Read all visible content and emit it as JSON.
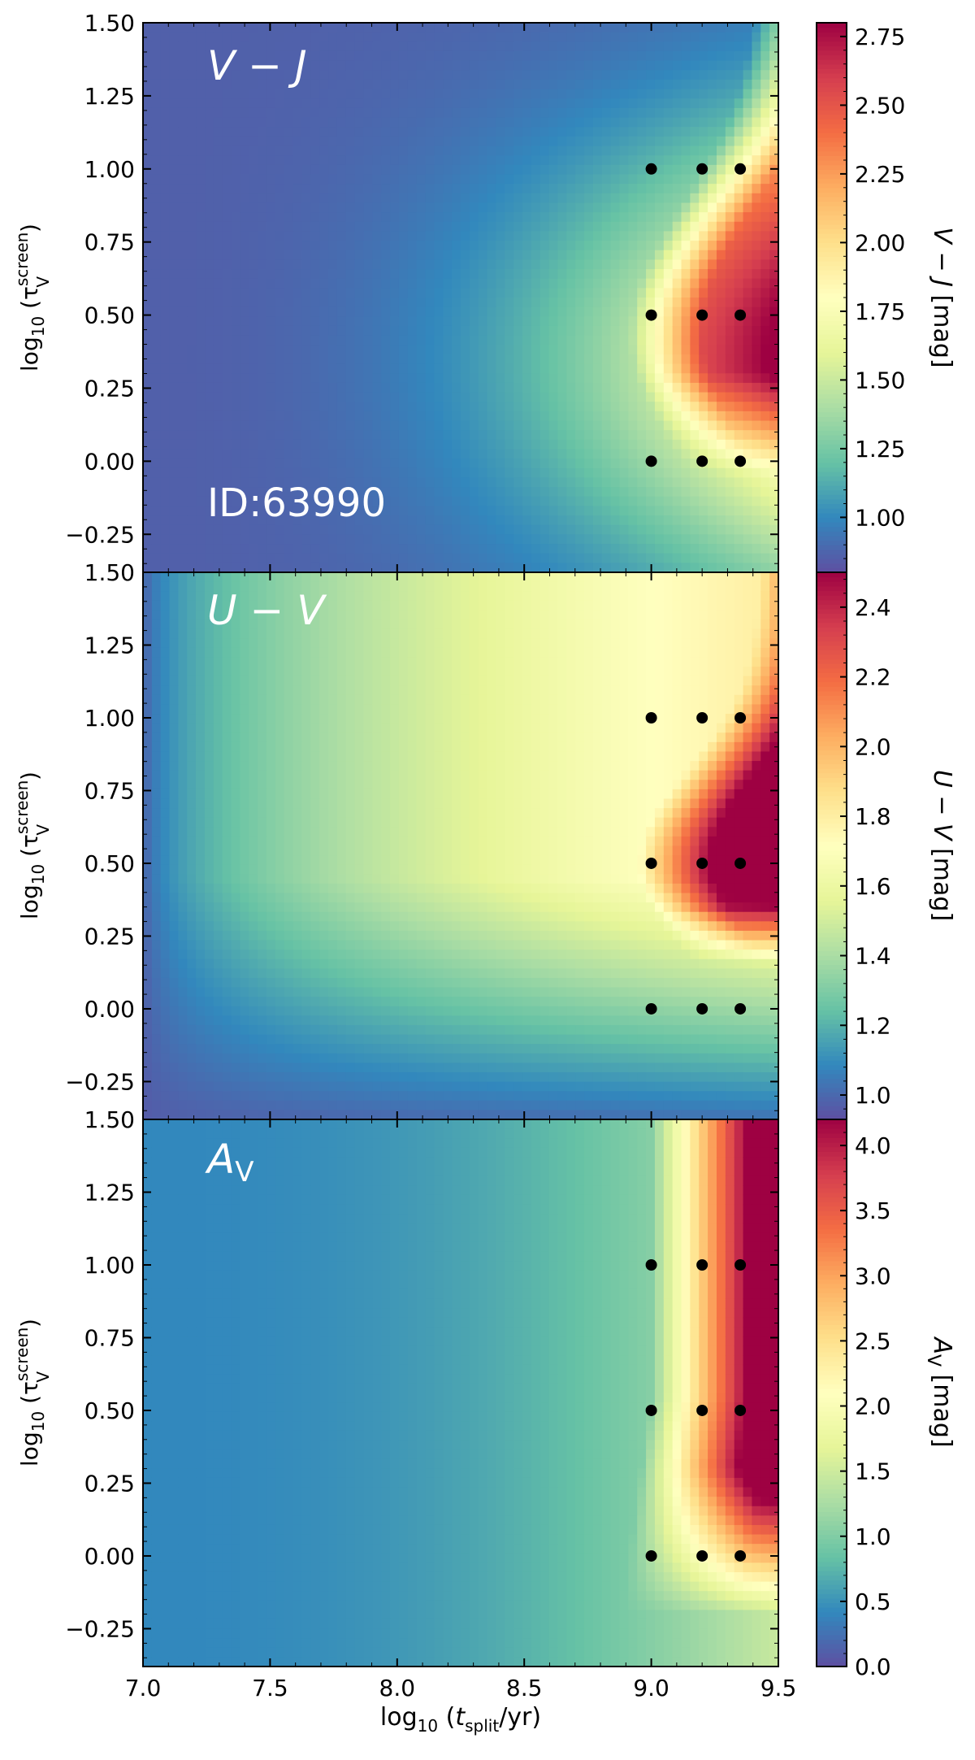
{
  "figure": {
    "x_axis_label": "log₁₀ (t_split/yr)",
    "colormap": "Spectral_r",
    "marker_color": "#000000",
    "colormap_stops": [
      "#5e4fa2",
      "#3288bd",
      "#66c2a5",
      "#abdda4",
      "#e6f598",
      "#ffffbf",
      "#fee08b",
      "#fdae61",
      "#f46d43",
      "#d53e4f",
      "#9e0142"
    ]
  },
  "chart_data": [
    {
      "type": "heatmap",
      "panel_label": "V − J",
      "annotation": "ID:63990",
      "colorbar_label": "V − J [mag]",
      "xlim": [
        7.0,
        9.5
      ],
      "ylim": [
        -0.38,
        1.5
      ],
      "y_ticks": [
        "−0.25",
        "0.00",
        "0.25",
        "0.50",
        "0.75",
        "1.00",
        "1.25",
        "1.50"
      ],
      "x_ticks": [],
      "color_range": [
        0.8,
        2.8
      ],
      "colorbar_ticks": [
        "1.00",
        "1.25",
        "1.50",
        "1.75",
        "2.00",
        "2.25",
        "2.50",
        "2.75"
      ],
      "points": [
        [
          9.0,
          1.0
        ],
        [
          9.2,
          1.0
        ],
        [
          9.35,
          1.0
        ],
        [
          9.0,
          0.5
        ],
        [
          9.2,
          0.5
        ],
        [
          9.35,
          0.5
        ],
        [
          9.0,
          0.0
        ],
        [
          9.2,
          0.0
        ],
        [
          9.35,
          0.0
        ]
      ]
    },
    {
      "type": "heatmap",
      "panel_label": "U − V",
      "annotation": "",
      "colorbar_label": "U − V [mag]",
      "xlim": [
        7.0,
        9.5
      ],
      "ylim": [
        -0.38,
        1.5
      ],
      "y_ticks": [
        "−0.25",
        "0.00",
        "0.25",
        "0.50",
        "0.75",
        "1.00",
        "1.25",
        "1.50"
      ],
      "x_ticks": [],
      "color_range": [
        0.93,
        2.5
      ],
      "colorbar_ticks": [
        "1.0",
        "1.2",
        "1.4",
        "1.6",
        "1.8",
        "2.0",
        "2.2",
        "2.4"
      ],
      "points": [
        [
          9.0,
          1.0
        ],
        [
          9.2,
          1.0
        ],
        [
          9.35,
          1.0
        ],
        [
          9.0,
          0.5
        ],
        [
          9.2,
          0.5
        ],
        [
          9.35,
          0.5
        ],
        [
          9.0,
          0.0
        ],
        [
          9.2,
          0.0
        ],
        [
          9.35,
          0.0
        ]
      ]
    },
    {
      "type": "heatmap",
      "panel_label": "A_V",
      "annotation": "",
      "colorbar_label": "A_V [mag]",
      "xlim": [
        7.0,
        9.5
      ],
      "ylim": [
        -0.38,
        1.5
      ],
      "y_ticks": [
        "−0.25",
        "0.00",
        "0.25",
        "0.50",
        "0.75",
        "1.00",
        "1.25",
        "1.50"
      ],
      "x_ticks": [
        "7.0",
        "7.5",
        "8.0",
        "8.5",
        "9.0",
        "9.5"
      ],
      "color_range": [
        0.0,
        4.2
      ],
      "colorbar_ticks": [
        "0.0",
        "0.5",
        "1.0",
        "1.5",
        "2.0",
        "2.5",
        "3.0",
        "3.5",
        "4.0"
      ],
      "points": [
        [
          9.0,
          1.0
        ],
        [
          9.2,
          1.0
        ],
        [
          9.35,
          1.0
        ],
        [
          9.0,
          0.5
        ],
        [
          9.2,
          0.5
        ],
        [
          9.35,
          0.5
        ],
        [
          9.0,
          0.0
        ],
        [
          9.2,
          0.0
        ],
        [
          9.35,
          0.0
        ]
      ]
    }
  ]
}
